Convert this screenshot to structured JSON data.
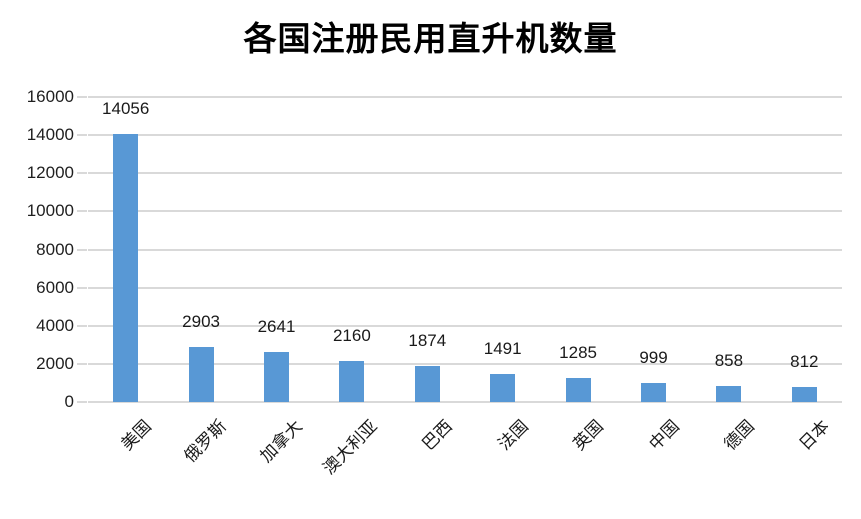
{
  "chart_data": {
    "type": "bar",
    "title": "各国注册民用直升机数量",
    "categories": [
      "美国",
      "俄罗斯",
      "加拿大",
      "澳大利亚",
      "巴西",
      "法国",
      "英国",
      "中国",
      "德国",
      "日本"
    ],
    "values": [
      14056,
      2903,
      2641,
      2160,
      1874,
      1491,
      1285,
      999,
      858,
      812
    ],
    "data_labels": [
      "14056",
      "2903",
      "2641",
      "2160",
      "1874",
      "1491",
      "1285",
      "999",
      "858",
      "812"
    ],
    "xlabel": "",
    "ylabel": "",
    "ylim": [
      0,
      16000
    ],
    "ytick_step": 2000,
    "ytick_labels": [
      "0",
      "2000",
      "4000",
      "6000",
      "8000",
      "10000",
      "12000",
      "14000",
      "16000"
    ],
    "grid": true,
    "legend_position": "none",
    "colors": {
      "bar": "#5898D5",
      "gridline": "#D9D9D9",
      "text": "#1a1a1a",
      "title_text": "#000000",
      "background": "#ffffff"
    }
  }
}
